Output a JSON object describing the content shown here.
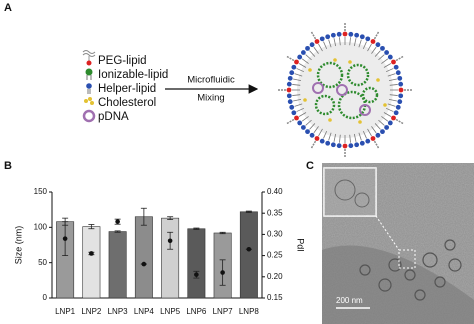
{
  "panels": {
    "a": "A",
    "b": "B",
    "c": "C"
  },
  "diagram": {
    "legend": [
      "PEG-lipid",
      "Ionizable-lipid",
      "Helper-lipid",
      "Cholesterol",
      "pDNA"
    ],
    "arrow_label": [
      "Microfluidic",
      "Mixing"
    ]
  },
  "micrograph": {
    "scale_bar": "200 nm"
  },
  "chart_data": {
    "type": "bar",
    "categories": [
      "LNP1",
      "LNP2",
      "LNP3",
      "LNP4",
      "LNP5",
      "LNP6",
      "LNP7",
      "LNP8"
    ],
    "ylabel": "Size (nm)",
    "y2label": "PdI",
    "ylim": [
      0,
      150
    ],
    "yticks": [
      0,
      50,
      100,
      150
    ],
    "y2lim": [
      0.15,
      0.4
    ],
    "y2ticks": [
      0.15,
      {
        "value": 0.2,
        "label": "0.20"
      },
      0.25,
      {
        "value": 0.3,
        "label": "0.30"
      },
      0.35,
      {
        "value": 0.4,
        "label": "0.40"
      }
    ],
    "series": [
      {
        "type": "bar",
        "colors": [
          "#9a9a9a",
          "#e2e2e2",
          "#6e6e6e",
          "#8c8c8c",
          "#d0d0d0",
          "#5a5a5a",
          "#9a9a9a",
          "#5a5a5a"
        ],
        "values": [
          108,
          101,
          94,
          115,
          113,
          98,
          92,
          122
        ],
        "errors": [
          5,
          3,
          1,
          12,
          2,
          1,
          1,
          1
        ]
      },
      {
        "type": "scatter",
        "axis": "y2",
        "color": "#111111",
        "values": [
          0.29,
          0.255,
          0.33,
          0.23,
          0.285,
          0.205,
          0.21,
          0.265
        ],
        "errors": [
          0.04,
          0.003,
          0.006,
          0,
          0.02,
          0.008,
          0.03,
          0
        ]
      }
    ]
  }
}
